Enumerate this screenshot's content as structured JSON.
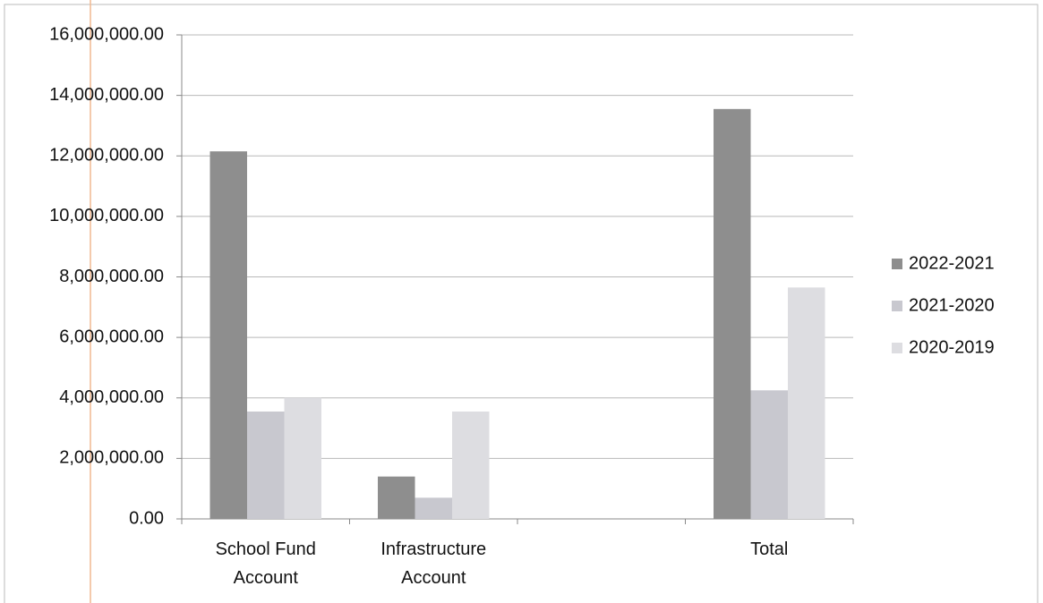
{
  "chart_data": {
    "type": "bar",
    "categories": [
      "School Fund Account",
      "Infrastructure Account",
      null,
      "Total"
    ],
    "series": [
      {
        "name": "2022-2021",
        "color": "#8e8e8e",
        "values": [
          12150000,
          1400000,
          null,
          13550000
        ]
      },
      {
        "name": "2021-2020",
        "color": "#c8c8cf",
        "values": [
          3550000,
          700000,
          null,
          4250000
        ]
      },
      {
        "name": "2020-2019",
        "color": "#dddde1",
        "values": [
          4000000,
          3550000,
          null,
          7650000
        ]
      }
    ],
    "ylim": [
      0,
      16000000
    ],
    "yticks": [
      {
        "value": 0,
        "label": "0.00"
      },
      {
        "value": 2000000,
        "label": "2,000,000.00"
      },
      {
        "value": 4000000,
        "label": "4,000,000.00"
      },
      {
        "value": 6000000,
        "label": "6,000,000.00"
      },
      {
        "value": 8000000,
        "label": "8,000,000.00"
      },
      {
        "value": 10000000,
        "label": "10,000,000.00"
      },
      {
        "value": 12000000,
        "label": "12,000,000.00"
      },
      {
        "value": 14000000,
        "label": "14,000,000.00"
      },
      {
        "value": 16000000,
        "label": "16,000,000.00"
      }
    ],
    "grid": true,
    "legend_position": "right"
  }
}
